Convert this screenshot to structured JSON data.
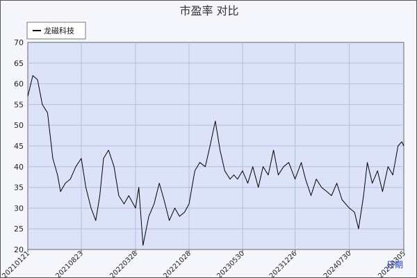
{
  "chart_data": {
    "type": "line",
    "title": "市盈率  对比",
    "xlabel": "日期",
    "ylabel": "",
    "ylim": [
      20,
      70
    ],
    "yticks": [
      20,
      25,
      30,
      35,
      40,
      45,
      50,
      55,
      60,
      65,
      70
    ],
    "x_tick_labels": [
      "20210121",
      "20210823",
      "20220328",
      "20221028",
      "20230530",
      "20231226",
      "20240730",
      "20250305"
    ],
    "x_range": [
      "2021-01-21",
      "2025-03-05"
    ],
    "grid": true,
    "legend": {
      "position": "top-left",
      "entries": [
        "龙磁科技"
      ]
    },
    "series": [
      {
        "name": "龙磁科技",
        "color": "#000000",
        "x": [
          "2021-01-21",
          "2021-02-10",
          "2021-03-01",
          "2021-03-20",
          "2021-04-10",
          "2021-05-01",
          "2021-05-20",
          "2021-06-01",
          "2021-06-20",
          "2021-07-10",
          "2021-08-01",
          "2021-08-23",
          "2021-09-10",
          "2021-10-01",
          "2021-10-20",
          "2021-11-05",
          "2021-11-20",
          "2021-12-10",
          "2022-01-01",
          "2022-01-20",
          "2022-02-10",
          "2022-03-01",
          "2022-03-28",
          "2022-04-10",
          "2022-04-27",
          "2022-05-20",
          "2022-06-10",
          "2022-07-01",
          "2022-07-20",
          "2022-08-10",
          "2022-09-01",
          "2022-09-20",
          "2022-10-10",
          "2022-10-28",
          "2022-11-20",
          "2022-12-10",
          "2023-01-01",
          "2023-01-20",
          "2023-02-10",
          "2023-03-01",
          "2023-03-20",
          "2023-04-10",
          "2023-04-25",
          "2023-05-10",
          "2023-05-30",
          "2023-06-20",
          "2023-07-10",
          "2023-08-01",
          "2023-08-20",
          "2023-09-10",
          "2023-10-01",
          "2023-10-20",
          "2023-11-10",
          "2023-12-01",
          "2023-12-26",
          "2024-01-20",
          "2024-02-06",
          "2024-02-28",
          "2024-03-20",
          "2024-04-10",
          "2024-05-01",
          "2024-05-20",
          "2024-06-10",
          "2024-07-01",
          "2024-07-30",
          "2024-08-20",
          "2024-09-05",
          "2024-09-25",
          "2024-10-10",
          "2024-10-30",
          "2024-11-20",
          "2024-12-10",
          "2025-01-01",
          "2025-01-20",
          "2025-02-10",
          "2025-02-25",
          "2025-03-05"
        ],
        "values": [
          57,
          62,
          61,
          55,
          53,
          42,
          38,
          34,
          36,
          37,
          40,
          42,
          35,
          30,
          27,
          33,
          42,
          44,
          40,
          33,
          31,
          33,
          30,
          35,
          21,
          28,
          31,
          36,
          32,
          27,
          30,
          28,
          29,
          31,
          39,
          41,
          40,
          45,
          51,
          44,
          39,
          37,
          38,
          37,
          39,
          36,
          40,
          35,
          40,
          38,
          44,
          38,
          40,
          41,
          37,
          41,
          37,
          33,
          37,
          35,
          34,
          33,
          36,
          32,
          30,
          29,
          25,
          33,
          41,
          36,
          39,
          34,
          40,
          38,
          45,
          46,
          45
        ]
      }
    ]
  }
}
